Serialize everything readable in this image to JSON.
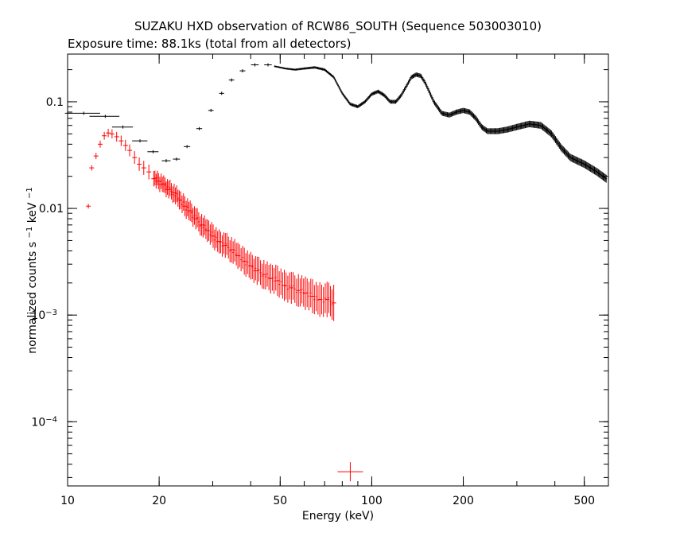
{
  "chart_data": {
    "type": "scatter",
    "title": "SUZAKU HXD observation of RCW86_SOUTH (Sequence 503003010)",
    "subtitle": "Exposure time: 88.1ks (total from all detectors)",
    "xlabel": "Energy (keV)",
    "ylabel_text": "normalized counts s",
    "ylabel_sup1": "−1",
    "ylabel_mid": " keV",
    "ylabel_sup2": "−1",
    "xscale": "log",
    "yscale": "log",
    "xlim": [
      10,
      600
    ],
    "ylim": [
      2.5e-05,
      0.28
    ],
    "x_ticks": [
      {
        "value": 10,
        "label": "10"
      },
      {
        "value": 20,
        "label": "20"
      },
      {
        "value": 50,
        "label": "50"
      },
      {
        "value": 100,
        "label": "100"
      },
      {
        "value": 200,
        "label": "200"
      },
      {
        "value": 500,
        "label": "500"
      }
    ],
    "y_ticks": [
      {
        "value": 0.1,
        "base": "0.1",
        "exp": ""
      },
      {
        "value": 0.01,
        "base": "0.01",
        "exp": ""
      },
      {
        "value": 0.001,
        "base": "10",
        "exp": "−3"
      },
      {
        "value": 0.0001,
        "base": "10",
        "exp": "−4"
      }
    ],
    "series": [
      {
        "color": "#000000",
        "points": [
          [
            11.3,
            0.078,
            1.5,
            0.0
          ],
          [
            13.3,
            0.073,
            1.5,
            0.0
          ],
          [
            15.2,
            0.058,
            1.2,
            0.0
          ],
          [
            17.3,
            0.043,
            1.0,
            0.0
          ],
          [
            19.1,
            0.034,
            0.8,
            0.0
          ],
          [
            21.1,
            0.028,
            0.7,
            0.0
          ],
          [
            22.8,
            0.029,
            0.6,
            0.0
          ],
          [
            24.7,
            0.038,
            0.6,
            0.0
          ],
          [
            27.1,
            0.056,
            0.6,
            0.0
          ],
          [
            29.6,
            0.083,
            0.6,
            0.0
          ],
          [
            32.1,
            0.12,
            0.6,
            0.0
          ],
          [
            34.6,
            0.16,
            0.7,
            0.0
          ],
          [
            37.6,
            0.195,
            0.8,
            0.0
          ],
          [
            41.3,
            0.222,
            1.2,
            0.0
          ],
          [
            45.6,
            0.222,
            1.3,
            0.0
          ]
        ],
        "curve": [
          [
            48,
            0.215
          ],
          [
            52,
            0.205
          ],
          [
            56,
            0.2
          ],
          [
            60,
            0.205
          ],
          [
            65,
            0.21
          ],
          [
            70,
            0.2
          ],
          [
            75,
            0.17
          ],
          [
            80,
            0.12
          ],
          [
            85,
            0.095
          ],
          [
            90,
            0.09
          ],
          [
            95,
            0.1
          ],
          [
            100,
            0.118
          ],
          [
            105,
            0.125
          ],
          [
            110,
            0.115
          ],
          [
            115,
            0.1
          ],
          [
            120,
            0.1
          ],
          [
            125,
            0.115
          ],
          [
            130,
            0.14
          ],
          [
            135,
            0.17
          ],
          [
            140,
            0.18
          ],
          [
            145,
            0.175
          ],
          [
            150,
            0.15
          ],
          [
            160,
            0.1
          ],
          [
            170,
            0.078
          ],
          [
            180,
            0.075
          ],
          [
            190,
            0.08
          ],
          [
            200,
            0.083
          ],
          [
            210,
            0.08
          ],
          [
            220,
            0.07
          ],
          [
            230,
            0.058
          ],
          [
            240,
            0.053
          ],
          [
            260,
            0.053
          ],
          [
            280,
            0.055
          ],
          [
            300,
            0.058
          ],
          [
            330,
            0.062
          ],
          [
            360,
            0.06
          ],
          [
            390,
            0.05
          ],
          [
            420,
            0.037
          ],
          [
            450,
            0.03
          ],
          [
            500,
            0.026
          ],
          [
            550,
            0.022
          ],
          [
            590,
            0.019
          ]
        ]
      },
      {
        "color": "#ff0000",
        "points": [
          [
            11.7,
            0.0105
          ],
          [
            12.0,
            0.024
          ],
          [
            12.4,
            0.031
          ],
          [
            12.8,
            0.04
          ],
          [
            13.2,
            0.048
          ],
          [
            13.6,
            0.051
          ],
          [
            14.0,
            0.05
          ],
          [
            14.5,
            0.047
          ],
          [
            15.0,
            0.043
          ],
          [
            15.5,
            0.039
          ],
          [
            16.0,
            0.035
          ],
          [
            16.6,
            0.03
          ],
          [
            17.2,
            0.026
          ],
          [
            17.8,
            0.024
          ],
          [
            18.5,
            0.022
          ],
          [
            19.2,
            0.019
          ],
          [
            19.9,
            0.018
          ],
          [
            20.7,
            0.017
          ],
          [
            21.5,
            0.015
          ],
          [
            22.4,
            0.014
          ],
          [
            23.3,
            0.012
          ],
          [
            24.3,
            0.0105
          ],
          [
            25.3,
            0.0095
          ],
          [
            26.4,
            0.008
          ],
          [
            27.6,
            0.007
          ],
          [
            28.8,
            0.0062
          ],
          [
            30.1,
            0.0055
          ],
          [
            31.5,
            0.0049
          ],
          [
            33.0,
            0.0045
          ],
          [
            34.6,
            0.0041
          ],
          [
            36.3,
            0.0036
          ],
          [
            38.1,
            0.0032
          ],
          [
            40.0,
            0.0029
          ],
          [
            42.0,
            0.0026
          ],
          [
            44.2,
            0.0024
          ],
          [
            46.5,
            0.0022
          ],
          [
            49.0,
            0.0021
          ],
          [
            51.6,
            0.0019
          ],
          [
            54.4,
            0.0018
          ],
          [
            57.4,
            0.0017
          ],
          [
            60.5,
            0.0016
          ],
          [
            63.9,
            0.0015
          ],
          [
            67.5,
            0.0014
          ],
          [
            71.3,
            0.0014
          ],
          [
            75.0,
            0.0013
          ],
          [
            85.0,
            3.4e-05
          ]
        ]
      }
    ],
    "grid": false,
    "legend": "none"
  }
}
